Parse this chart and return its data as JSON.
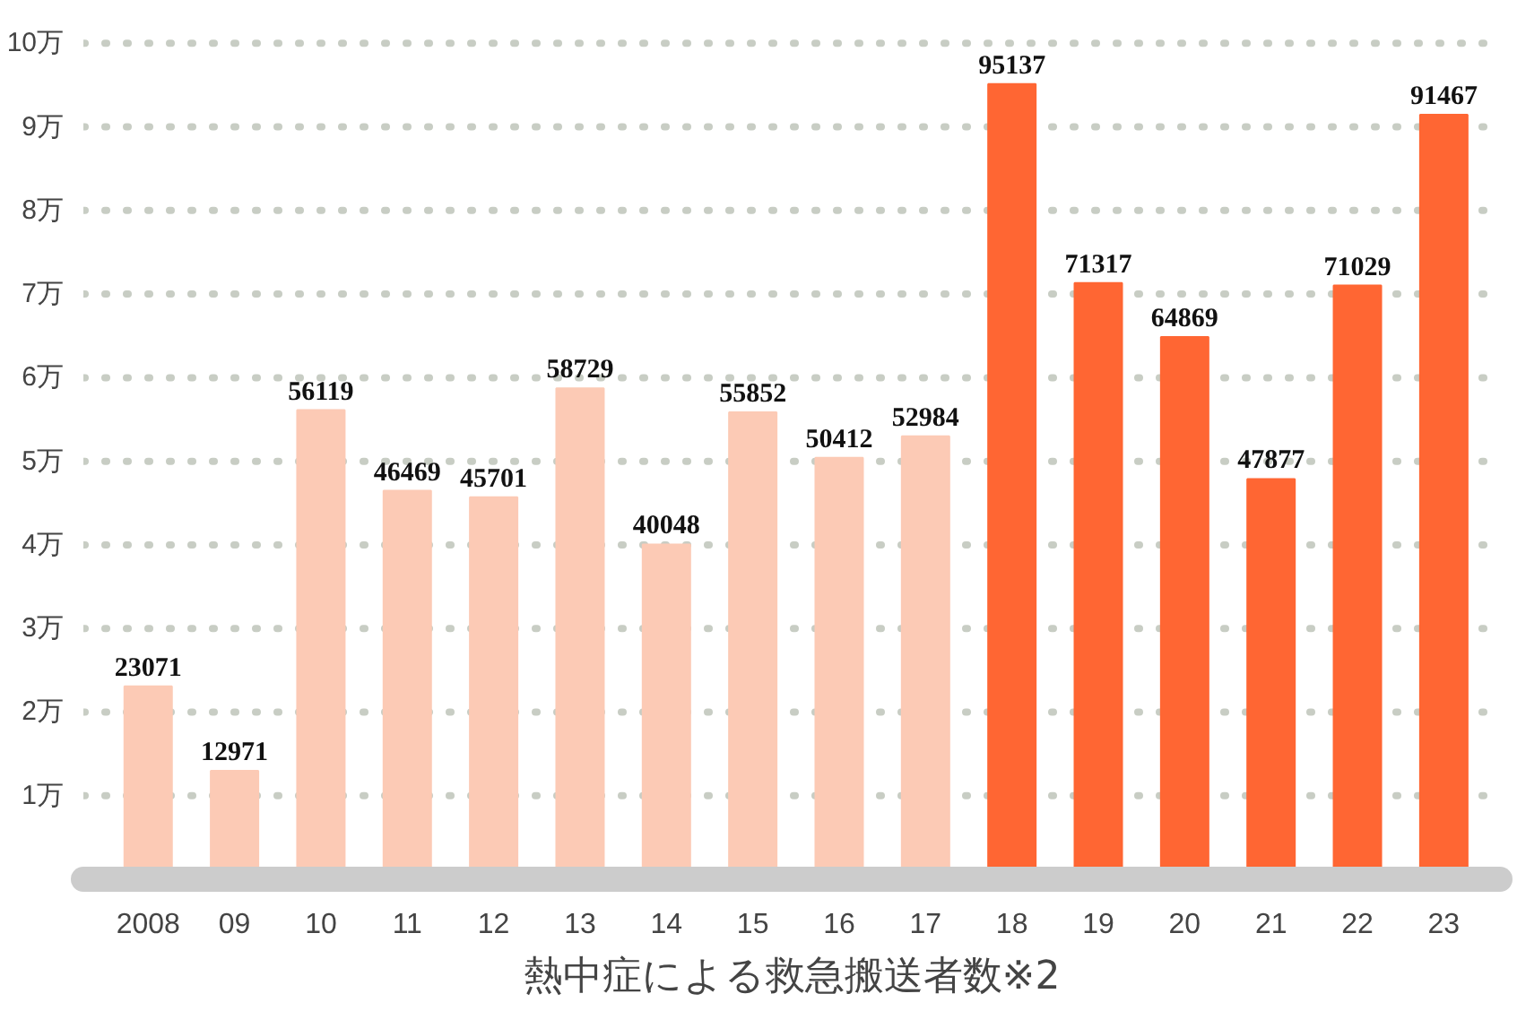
{
  "chart_data": {
    "type": "bar",
    "title": "熱中症による救急搬送者数※2",
    "categories": [
      "2008",
      "09",
      "10",
      "11",
      "12",
      "13",
      "14",
      "15",
      "16",
      "17",
      "18",
      "19",
      "20",
      "21",
      "22",
      "23"
    ],
    "values": [
      23071,
      12971,
      56119,
      46469,
      45701,
      58729,
      40048,
      55852,
      50412,
      52984,
      95137,
      71317,
      64869,
      47877,
      71029,
      91467
    ],
    "colors": [
      "#fccab5",
      "#fccab5",
      "#fccab5",
      "#fccab5",
      "#fccab5",
      "#fccab5",
      "#fccab5",
      "#fccab5",
      "#fccab5",
      "#fccab5",
      "#ff6633",
      "#ff6633",
      "#ff6633",
      "#ff6633",
      "#ff6633",
      "#ff6633"
    ],
    "data_labels": true,
    "ylim": [
      0,
      100000
    ],
    "ref_lines": [
      {
        "axis": "y",
        "value": 10000,
        "label": "1万",
        "color": "#c8cdc4",
        "line_style": "dotted"
      },
      {
        "axis": "y",
        "value": 20000,
        "label": "2万",
        "color": "#c8cdc4",
        "line_style": "dotted"
      },
      {
        "axis": "y",
        "value": 30000,
        "label": "3万",
        "color": "#c8cdc4",
        "line_style": "dotted"
      },
      {
        "axis": "y",
        "value": 40000,
        "label": "4万",
        "color": "#c8cdc4",
        "line_style": "dotted"
      },
      {
        "axis": "y",
        "value": 50000,
        "label": "5万",
        "color": "#c8cdc4",
        "line_style": "dotted"
      },
      {
        "axis": "y",
        "value": 60000,
        "label": "6万",
        "color": "#c8cdc4",
        "line_style": "dotted"
      },
      {
        "axis": "y",
        "value": 70000,
        "label": "7万",
        "color": "#c8cdc4",
        "line_style": "dotted"
      },
      {
        "axis": "y",
        "value": 80000,
        "label": "8万",
        "color": "#c8cdc4",
        "line_style": "dotted"
      },
      {
        "axis": "y",
        "value": 90000,
        "label": "9万",
        "color": "#c8cdc4",
        "line_style": "dotted"
      },
      {
        "axis": "y",
        "value": 100000,
        "label": "10万",
        "color": "#c8cdc4",
        "line_style": "dotted"
      }
    ]
  }
}
